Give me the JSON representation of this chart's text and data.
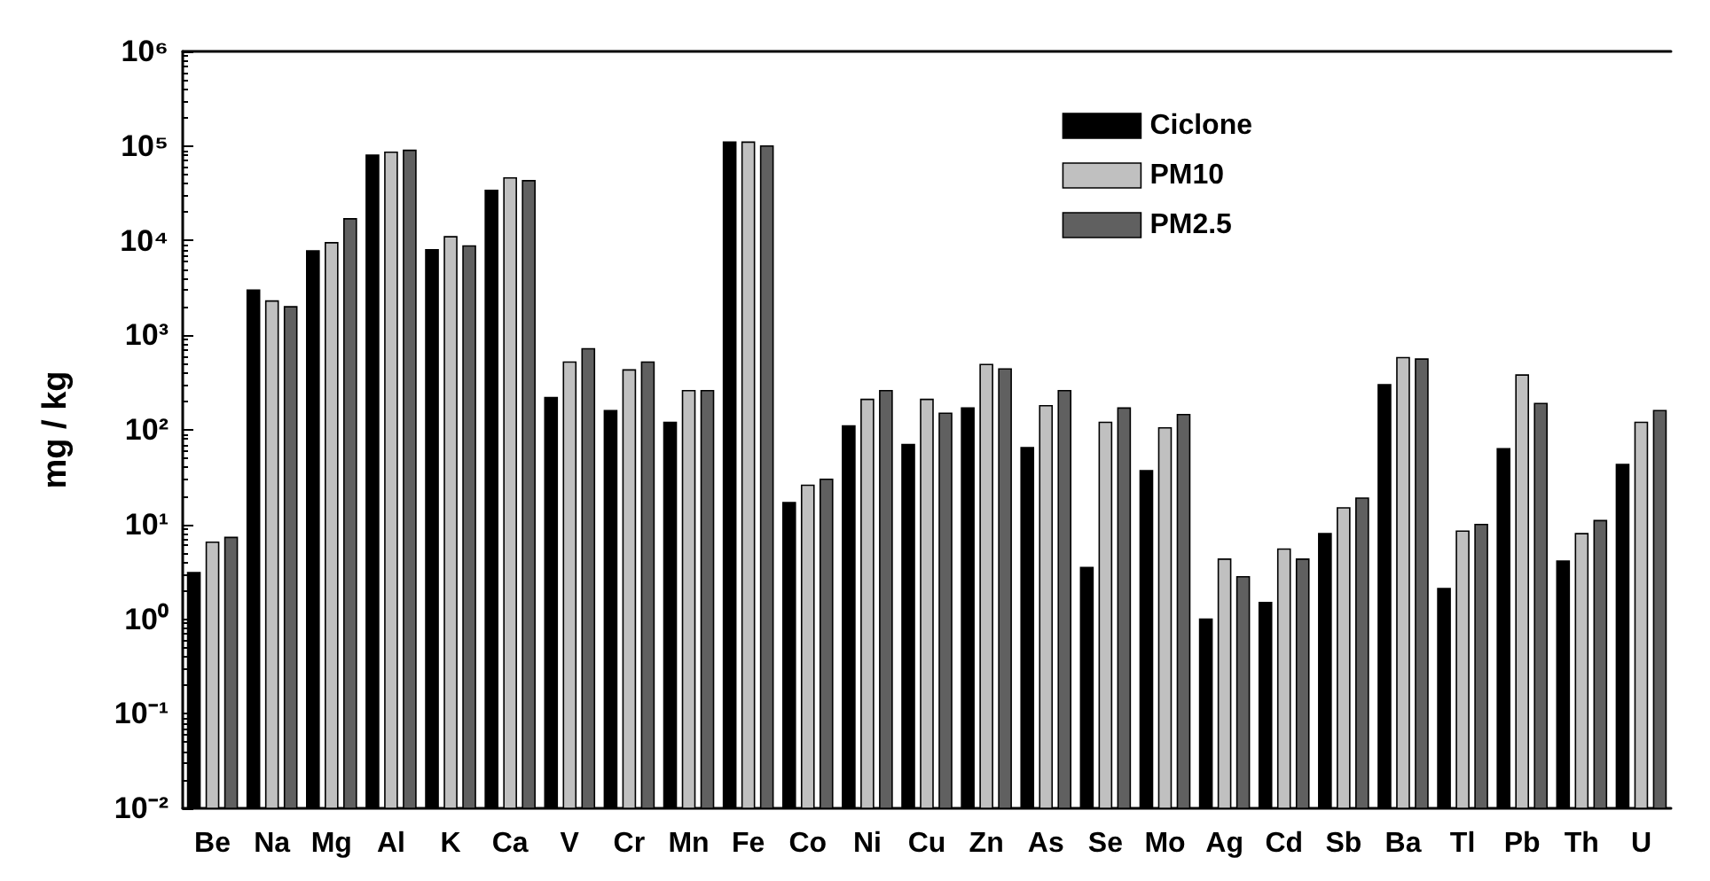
{
  "chart_data": {
    "type": "bar",
    "ylabel": "mg / kg",
    "categories": [
      "Be",
      "Na",
      "Mg",
      "Al",
      "K",
      "Ca",
      "V",
      "Cr",
      "Mn",
      "Fe",
      "Co",
      "Ni",
      "Cu",
      "Zn",
      "As",
      "Se",
      "Mo",
      "Ag",
      "Cd",
      "Sb",
      "Ba",
      "Tl",
      "Pb",
      "Th",
      "U"
    ],
    "series": [
      {
        "name": "Ciclone",
        "color": "#000000",
        "values": [
          3.1,
          3000,
          7800,
          80000,
          8000,
          34000,
          220,
          160,
          120,
          110000,
          17,
          110,
          70,
          170,
          65,
          3.5,
          37,
          1.0,
          1.5,
          8,
          300,
          2.1,
          63,
          4.1,
          43
        ]
      },
      {
        "name": "PM10",
        "color": "#c0c0c0",
        "values": [
          6.5,
          2300,
          9500,
          86000,
          11000,
          46000,
          520,
          430,
          260,
          110000,
          26,
          210,
          210,
          490,
          180,
          120,
          105,
          4.3,
          5.5,
          15,
          580,
          8.5,
          380,
          8,
          120
        ]
      },
      {
        "name": "PM2.5",
        "color": "#606060",
        "values": [
          7.3,
          2000,
          17000,
          90000,
          8800,
          43000,
          720,
          520,
          260,
          100000,
          30,
          260,
          150,
          440,
          260,
          170,
          145,
          2.8,
          4.3,
          19,
          560,
          10,
          190,
          11,
          160
        ]
      }
    ],
    "log": "y",
    "ylim": [
      0.01,
      1000000
    ],
    "yticks": [
      {
        "value": 0.01,
        "label": "10⁻²"
      },
      {
        "value": 0.1,
        "label": "10⁻¹"
      },
      {
        "value": 1,
        "label": "10⁰"
      },
      {
        "value": 10,
        "label": "10¹"
      },
      {
        "value": 100,
        "label": "10²"
      },
      {
        "value": 1000,
        "label": "10³"
      },
      {
        "value": 10000,
        "label": "10⁴"
      },
      {
        "value": 100000,
        "label": "10⁵"
      },
      {
        "value": 1000000,
        "label": "10⁶"
      }
    ],
    "grid": false,
    "legend": "top right"
  }
}
